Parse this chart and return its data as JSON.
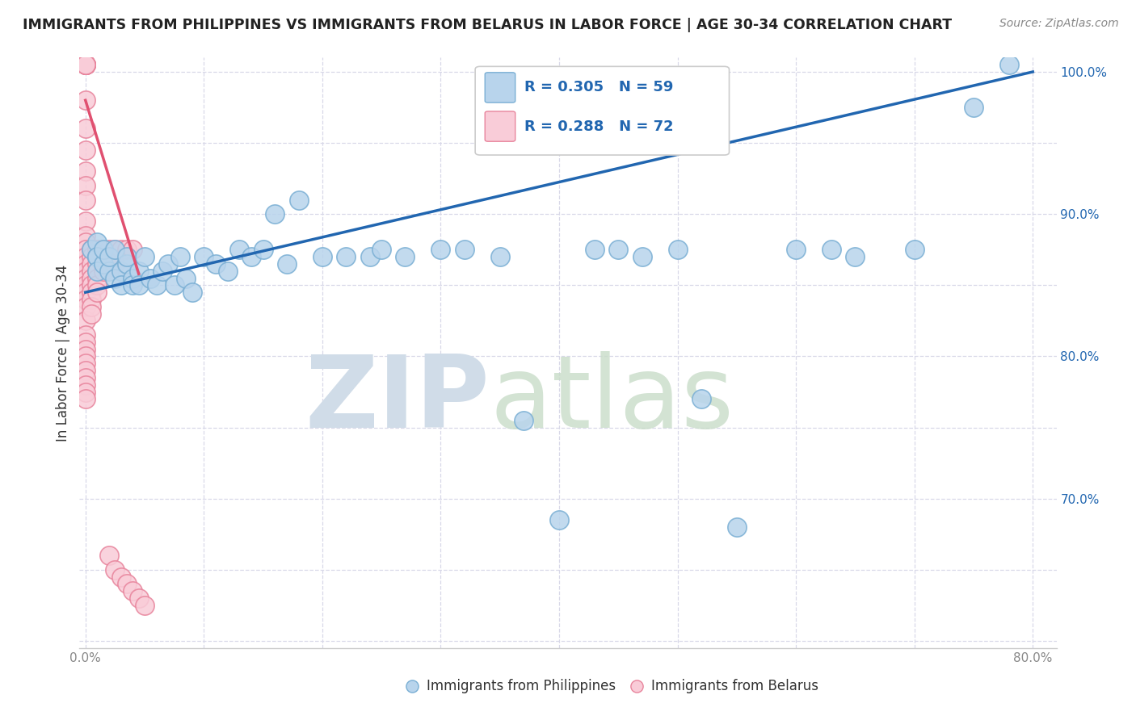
{
  "title": "IMMIGRANTS FROM PHILIPPINES VS IMMIGRANTS FROM BELARUS IN LABOR FORCE | AGE 30-34 CORRELATION CHART",
  "source": "Source: ZipAtlas.com",
  "xlabel_label": "Immigrants from Philippines",
  "xlabel_label2": "Immigrants from Belarus",
  "ylabel": "In Labor Force | Age 30-34",
  "xlim": [
    -0.005,
    0.82
  ],
  "ylim": [
    0.595,
    1.01
  ],
  "xticks": [
    0.0,
    0.1,
    0.2,
    0.3,
    0.4,
    0.5,
    0.6,
    0.7,
    0.8
  ],
  "yticks": [
    0.6,
    0.65,
    0.7,
    0.75,
    0.8,
    0.85,
    0.9,
    0.95,
    1.0
  ],
  "ytick_labels_right": [
    "",
    "",
    "70.0%",
    "",
    "80.0%",
    "",
    "90.0%",
    "",
    "100.0%"
  ],
  "philippines_R": 0.305,
  "philippines_N": 59,
  "belarus_R": 0.288,
  "belarus_N": 72,
  "philippines_color": "#b8d4ec",
  "philippines_edge_color": "#7aafd4",
  "belarus_color": "#f9ccd8",
  "belarus_edge_color": "#e8849c",
  "philippines_line_color": "#2166b0",
  "belarus_line_color": "#e05070",
  "grid_color": "#d8d8e8",
  "watermark_zip_color": "#d0dce8",
  "watermark_atlas_color": "#c8dcc8",
  "philippines_line_x0": 0.0,
  "philippines_line_y0": 0.845,
  "philippines_line_x1": 0.8,
  "philippines_line_y1": 1.0,
  "belarus_line_x0": 0.0,
  "belarus_line_y0": 0.98,
  "belarus_line_x1": 0.045,
  "belarus_line_y1": 0.858,
  "philippines_x": [
    0.005,
    0.01,
    0.01,
    0.01,
    0.01,
    0.015,
    0.015,
    0.02,
    0.02,
    0.025,
    0.025,
    0.03,
    0.03,
    0.035,
    0.035,
    0.04,
    0.04,
    0.045,
    0.045,
    0.05,
    0.055,
    0.06,
    0.065,
    0.07,
    0.075,
    0.08,
    0.085,
    0.09,
    0.1,
    0.11,
    0.12,
    0.13,
    0.14,
    0.15,
    0.16,
    0.17,
    0.18,
    0.2,
    0.22,
    0.24,
    0.25,
    0.27,
    0.3,
    0.32,
    0.35,
    0.37,
    0.4,
    0.43,
    0.45,
    0.47,
    0.5,
    0.52,
    0.55,
    0.6,
    0.63,
    0.65,
    0.7,
    0.75,
    0.78
  ],
  "philippines_y": [
    0.875,
    0.87,
    0.88,
    0.87,
    0.86,
    0.865,
    0.875,
    0.86,
    0.87,
    0.855,
    0.875,
    0.86,
    0.85,
    0.865,
    0.87,
    0.855,
    0.85,
    0.86,
    0.85,
    0.87,
    0.855,
    0.85,
    0.86,
    0.865,
    0.85,
    0.87,
    0.855,
    0.845,
    0.87,
    0.865,
    0.86,
    0.875,
    0.87,
    0.875,
    0.9,
    0.865,
    0.91,
    0.87,
    0.87,
    0.87,
    0.875,
    0.87,
    0.875,
    0.875,
    0.87,
    0.755,
    0.685,
    0.875,
    0.875,
    0.87,
    0.875,
    0.77,
    0.68,
    0.875,
    0.875,
    0.87,
    0.875,
    0.975,
    1.005
  ],
  "belarus_x": [
    0.0,
    0.0,
    0.0,
    0.0,
    0.0,
    0.0,
    0.0,
    0.0,
    0.0,
    0.0,
    0.0,
    0.0,
    0.0,
    0.0,
    0.0,
    0.0,
    0.0,
    0.0,
    0.0,
    0.0,
    0.0,
    0.0,
    0.0,
    0.0,
    0.0,
    0.0,
    0.0,
    0.0,
    0.0,
    0.0,
    0.0,
    0.0,
    0.0,
    0.0,
    0.0,
    0.0,
    0.0,
    0.005,
    0.005,
    0.005,
    0.005,
    0.005,
    0.005,
    0.005,
    0.005,
    0.005,
    0.005,
    0.01,
    0.01,
    0.01,
    0.01,
    0.01,
    0.01,
    0.01,
    0.015,
    0.015,
    0.015,
    0.015,
    0.02,
    0.02,
    0.02,
    0.025,
    0.025,
    0.025,
    0.03,
    0.03,
    0.035,
    0.035,
    0.04,
    0.04,
    0.045,
    0.05
  ],
  "belarus_y": [
    1.005,
    1.005,
    1.005,
    1.005,
    1.005,
    1.005,
    1.005,
    1.005,
    0.98,
    0.96,
    0.945,
    0.93,
    0.92,
    0.91,
    0.895,
    0.885,
    0.88,
    0.875,
    0.87,
    0.865,
    0.86,
    0.855,
    0.85,
    0.845,
    0.84,
    0.835,
    0.825,
    0.815,
    0.81,
    0.805,
    0.8,
    0.795,
    0.79,
    0.785,
    0.78,
    0.775,
    0.77,
    0.875,
    0.87,
    0.865,
    0.86,
    0.855,
    0.85,
    0.845,
    0.84,
    0.835,
    0.83,
    0.875,
    0.87,
    0.865,
    0.86,
    0.855,
    0.85,
    0.845,
    0.875,
    0.87,
    0.865,
    0.86,
    0.875,
    0.868,
    0.66,
    0.875,
    0.865,
    0.65,
    0.875,
    0.645,
    0.875,
    0.64,
    0.875,
    0.635,
    0.63,
    0.625
  ]
}
